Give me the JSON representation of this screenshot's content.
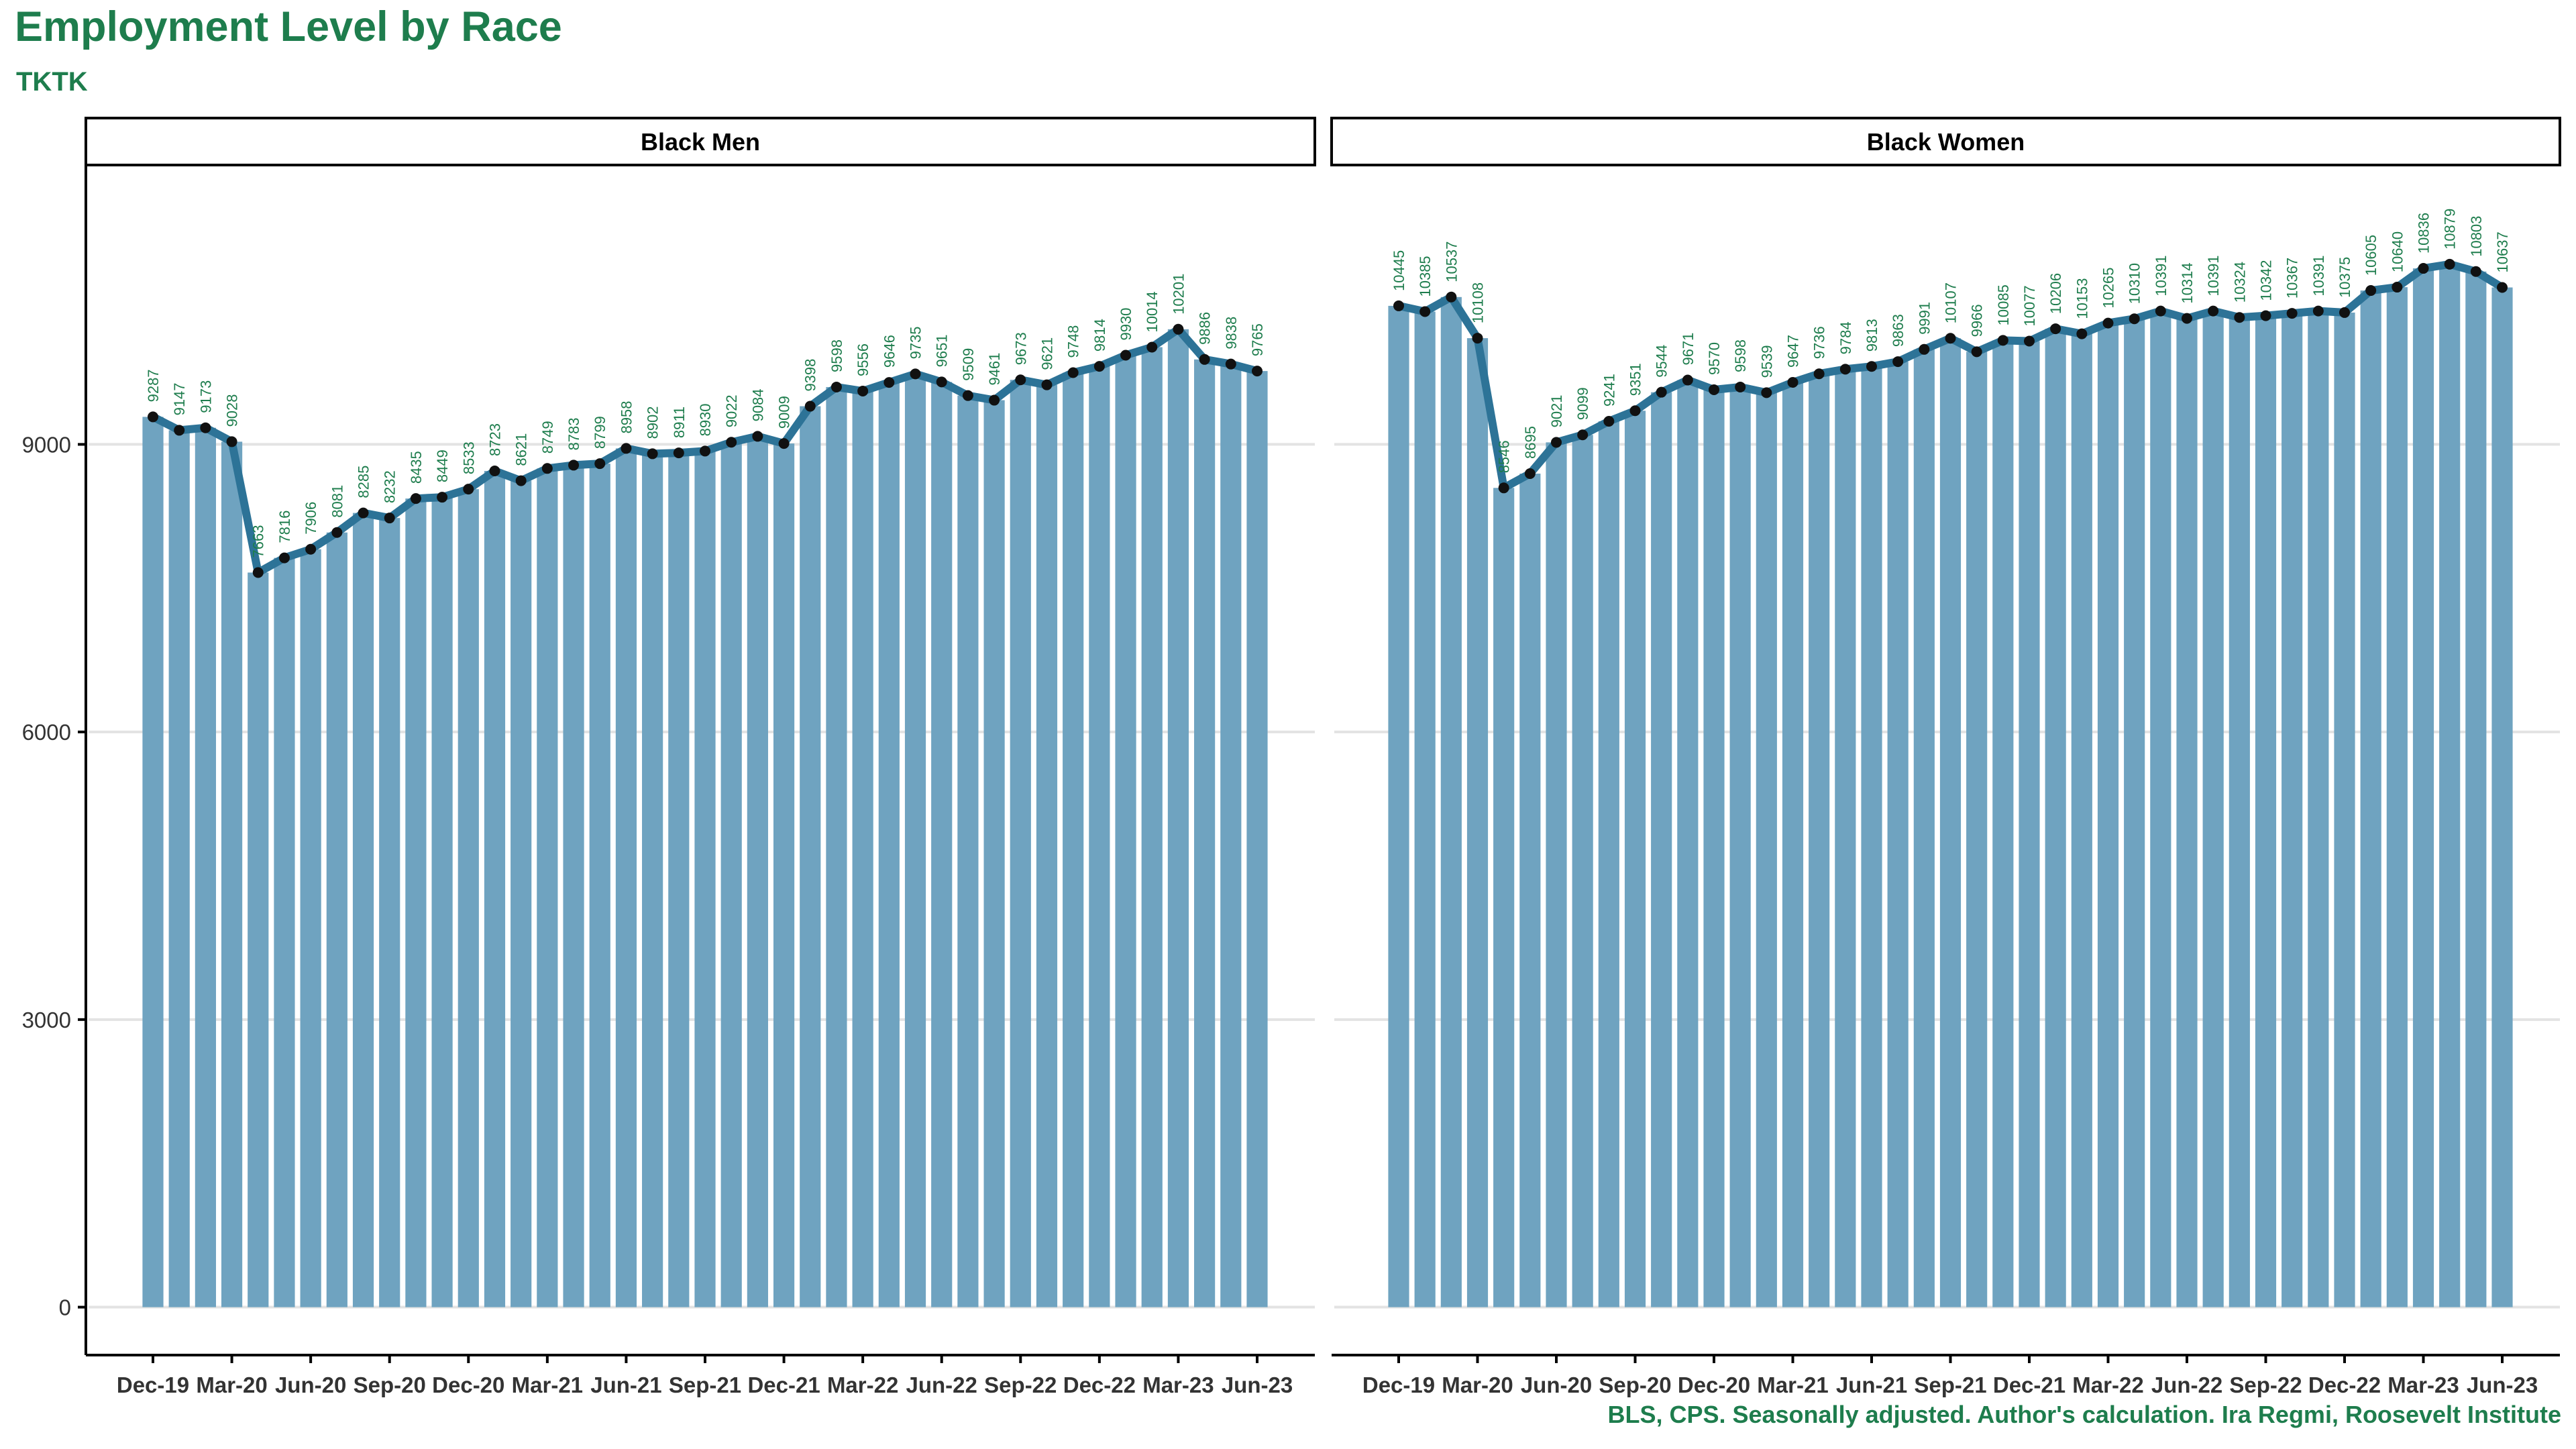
{
  "title": "Employment Level by Race",
  "subtitle": "TKTK",
  "source": "BLS, CPS. Seasonally adjusted. Author's calculation. Ira Regmi, Roosevelt Institute",
  "colors": {
    "title": "#1e7d4d",
    "bar": "#6fa3c0",
    "line": "#2d7397",
    "point": "#111111",
    "label": "#1e7d4d",
    "grid": "#e3e3e3"
  },
  "chart_data": {
    "type": "bar",
    "overlay": "line",
    "title": "Employment Level by Race",
    "xlabel": "",
    "ylabel": "",
    "ylim": [
      -500,
      11900
    ],
    "yticks": [
      0,
      3000,
      6000,
      9000
    ],
    "grid": true,
    "data_labels": true,
    "x_tick_labels": [
      "Dec-19",
      "Mar-20",
      "Jun-20",
      "Sep-20",
      "Dec-20",
      "Mar-21",
      "Jun-21",
      "Sep-21",
      "Dec-21",
      "Mar-22",
      "Jun-22",
      "Sep-22",
      "Dec-22",
      "Mar-23",
      "Jun-23"
    ],
    "x_tick_every": 3,
    "panels": [
      {
        "label": "Black Men",
        "values": [
          9287,
          9147,
          9173,
          9028,
          7663,
          7816,
          7906,
          8081,
          8285,
          8232,
          8435,
          8449,
          8533,
          8723,
          8621,
          8749,
          8783,
          8799,
          8958,
          8902,
          8911,
          8930,
          9022,
          9084,
          9009,
          9398,
          9598,
          9556,
          9646,
          9735,
          9651,
          9509,
          9461,
          9673,
          9621,
          9748,
          9814,
          9930,
          10014,
          10201,
          9886,
          9838,
          9765
        ]
      },
      {
        "label": "Black Women",
        "values": [
          10445,
          10385,
          10537,
          10108,
          8546,
          8695,
          9021,
          9099,
          9241,
          9351,
          9544,
          9671,
          9570,
          9598,
          9539,
          9647,
          9736,
          9784,
          9813,
          9863,
          9991,
          10107,
          9966,
          10085,
          10077,
          10206,
          10153,
          10265,
          10310,
          10391,
          10314,
          10391,
          10324,
          10342,
          10367,
          10391,
          10375,
          10605,
          10640,
          10836,
          10879,
          10803,
          10637
        ]
      }
    ]
  }
}
